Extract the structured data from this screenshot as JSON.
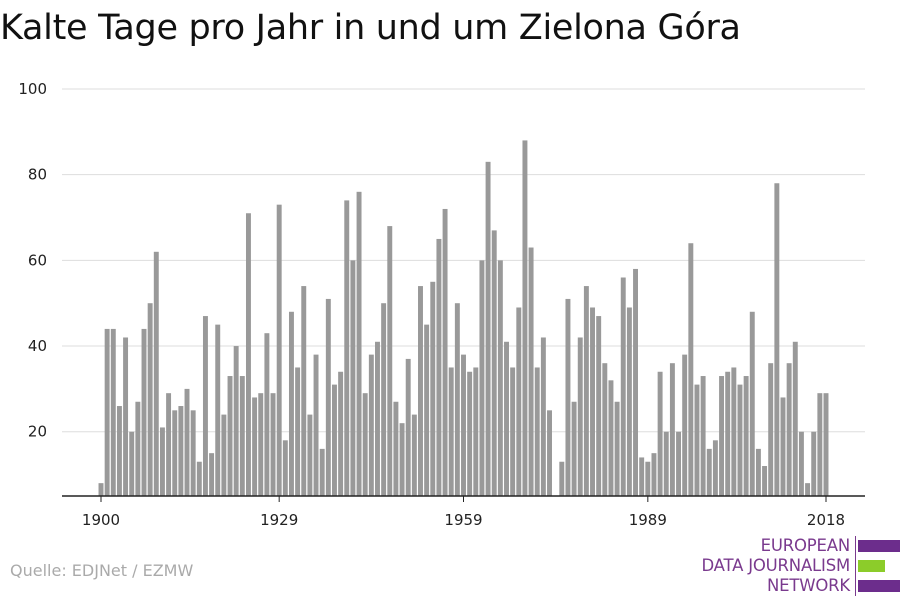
{
  "title": "Kalte Tage pro Jahr in und um Zielona Góra",
  "source": "Quelle: EDJNet / EZMW",
  "logo": {
    "lines": [
      "EUROPEAN",
      "DATA JOURNALISM",
      "NETWORK"
    ],
    "colors": {
      "text": "#7a3a8e",
      "purple": "#6c2d8c",
      "green": "#8ccc2a"
    }
  },
  "chart_data": {
    "type": "bar",
    "title": "Kalte Tage pro Jahr in und um Zielona Góra",
    "xlabel": "",
    "ylabel": "",
    "x": [
      1900,
      1901,
      1902,
      1903,
      1904,
      1905,
      1906,
      1907,
      1908,
      1909,
      1910,
      1911,
      1912,
      1913,
      1914,
      1915,
      1916,
      1917,
      1918,
      1919,
      1920,
      1921,
      1922,
      1923,
      1924,
      1925,
      1926,
      1927,
      1928,
      1929,
      1930,
      1931,
      1932,
      1933,
      1934,
      1935,
      1936,
      1937,
      1938,
      1939,
      1940,
      1941,
      1942,
      1943,
      1944,
      1945,
      1946,
      1947,
      1948,
      1949,
      1950,
      1951,
      1952,
      1953,
      1954,
      1955,
      1956,
      1957,
      1958,
      1959,
      1960,
      1961,
      1962,
      1963,
      1964,
      1965,
      1966,
      1967,
      1968,
      1969,
      1970,
      1971,
      1972,
      1973,
      1974,
      1975,
      1976,
      1977,
      1978,
      1979,
      1980,
      1981,
      1982,
      1983,
      1984,
      1985,
      1986,
      1987,
      1988,
      1989,
      1990,
      1991,
      1992,
      1993,
      1994,
      1995,
      1996,
      1997,
      1998,
      1999,
      2000,
      2001,
      2002,
      2003,
      2004,
      2005,
      2006,
      2007,
      2008,
      2009,
      2010,
      2011,
      2012,
      2013,
      2014,
      2015,
      2016,
      2017,
      2018
    ],
    "values": [
      8,
      44,
      44,
      26,
      42,
      20,
      27,
      44,
      50,
      62,
      21,
      29,
      25,
      26,
      30,
      25,
      13,
      47,
      15,
      45,
      24,
      33,
      40,
      33,
      71,
      28,
      29,
      43,
      29,
      73,
      18,
      48,
      35,
      54,
      24,
      38,
      16,
      51,
      31,
      34,
      74,
      60,
      76,
      29,
      38,
      41,
      50,
      68,
      27,
      22,
      37,
      24,
      54,
      45,
      55,
      65,
      72,
      35,
      50,
      38,
      34,
      35,
      60,
      83,
      67,
      60,
      41,
      35,
      49,
      88,
      63,
      35,
      42,
      25,
      5,
      13,
      51,
      27,
      42,
      54,
      49,
      47,
      36,
      32,
      27,
      56,
      49,
      58,
      14,
      13,
      15,
      34,
      20,
      36,
      20,
      38,
      64,
      31,
      33,
      16,
      18,
      33,
      34,
      35,
      31,
      33,
      48,
      16,
      12,
      36,
      78,
      28,
      36,
      41,
      20,
      8,
      20,
      29,
      29
    ],
    "ylim": [
      5,
      100
    ],
    "y_ticks": [
      20,
      40,
      60,
      80,
      100
    ],
    "x_ticks": [
      1900,
      1929,
      1959,
      1989,
      2018
    ],
    "bar_color": "#999999",
    "grid": true
  }
}
